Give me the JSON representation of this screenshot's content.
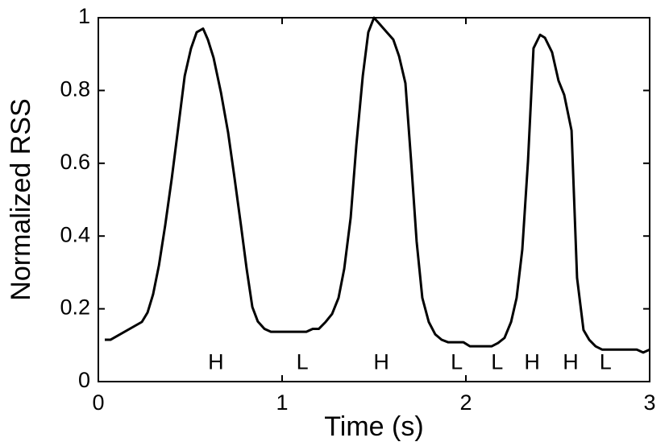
{
  "chart_data": {
    "type": "line",
    "x_label": "Time (s)",
    "y_label": "Normalized RSS",
    "x": [
      0.035,
      0.066,
      0.237,
      0.268,
      0.298,
      0.33,
      0.364,
      0.4,
      0.434,
      0.47,
      0.504,
      0.535,
      0.57,
      0.596,
      0.627,
      0.667,
      0.706,
      0.741,
      0.776,
      0.807,
      0.838,
      0.868,
      0.904,
      0.939,
      1.132,
      1.167,
      1.2,
      1.237,
      1.272,
      1.307,
      1.338,
      1.373,
      1.404,
      1.439,
      1.469,
      1.5,
      1.535,
      1.57,
      1.605,
      1.636,
      1.671,
      1.702,
      1.732,
      1.763,
      1.798,
      1.833,
      1.868,
      1.904,
      1.987,
      2.022,
      2.14,
      2.175,
      2.21,
      2.246,
      2.276,
      2.307,
      2.338,
      2.368,
      2.404,
      2.43,
      2.469,
      2.504,
      2.535,
      2.575,
      2.605,
      2.64,
      2.671,
      2.706,
      2.741,
      2.93,
      2.965,
      3.0
    ],
    "series": [
      {
        "color": "#000000",
        "values": [
          0.115,
          0.115,
          0.164,
          0.19,
          0.24,
          0.32,
          0.43,
          0.56,
          0.695,
          0.84,
          0.915,
          0.96,
          0.97,
          0.94,
          0.89,
          0.795,
          0.685,
          0.56,
          0.43,
          0.31,
          0.205,
          0.165,
          0.145,
          0.137,
          0.137,
          0.145,
          0.145,
          0.164,
          0.186,
          0.23,
          0.31,
          0.45,
          0.65,
          0.84,
          0.96,
          1.0,
          0.98,
          0.96,
          0.94,
          0.895,
          0.82,
          0.606,
          0.385,
          0.23,
          0.164,
          0.13,
          0.115,
          0.108,
          0.108,
          0.097,
          0.097,
          0.106,
          0.12,
          0.164,
          0.23,
          0.363,
          0.606,
          0.916,
          0.953,
          0.945,
          0.905,
          0.827,
          0.788,
          0.69,
          0.285,
          0.142,
          0.115,
          0.097,
          0.088,
          0.088,
          0.08,
          0.088
        ]
      }
    ],
    "annotations": [
      {
        "text": "H",
        "x": 0.64,
        "y": 0.05
      },
      {
        "text": "L",
        "x": 1.11,
        "y": 0.05
      },
      {
        "text": "H",
        "x": 1.54,
        "y": 0.05
      },
      {
        "text": "L",
        "x": 1.95,
        "y": 0.05
      },
      {
        "text": "L",
        "x": 2.17,
        "y": 0.05
      },
      {
        "text": "H",
        "x": 2.36,
        "y": 0.05
      },
      {
        "text": "H",
        "x": 2.57,
        "y": 0.05
      },
      {
        "text": "L",
        "x": 2.76,
        "y": 0.05
      }
    ],
    "xlim": [
      0,
      3
    ],
    "ylim": [
      0,
      1
    ],
    "xticks": [
      0,
      1,
      2,
      3
    ],
    "yticks": [
      0,
      0.2,
      0.4,
      0.6,
      0.8,
      1
    ]
  }
}
